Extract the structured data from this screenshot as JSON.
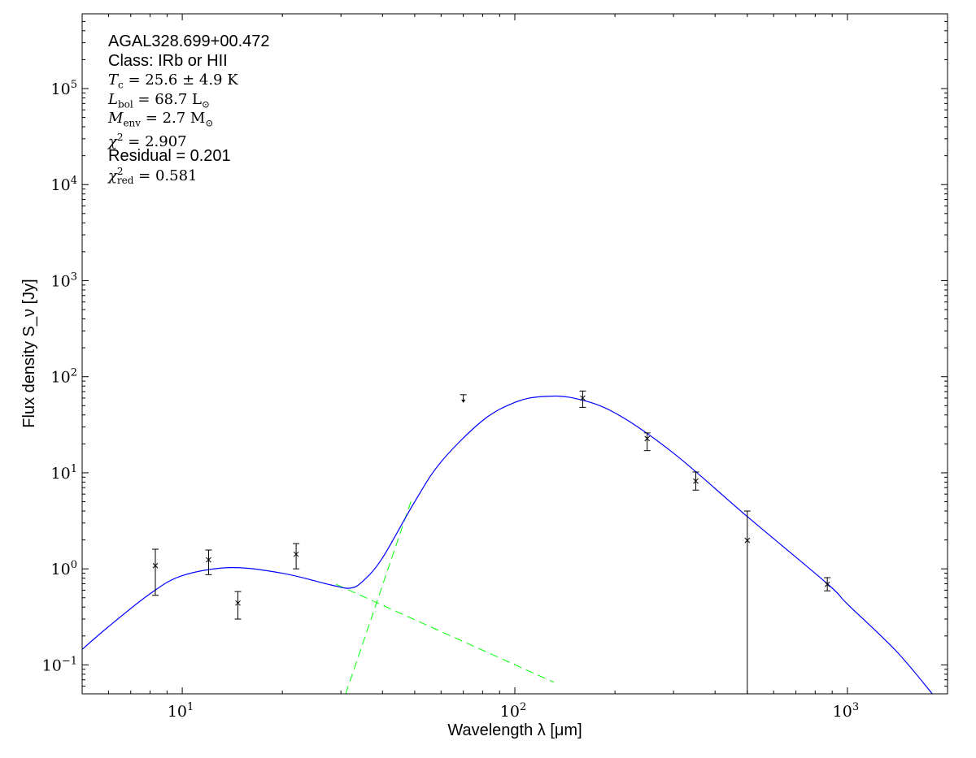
{
  "chart_data": {
    "type": "scatter",
    "xlabel": "Wavelength λ [μm]",
    "ylabel": "Flux density S_ν [Jy]",
    "xscale": "log",
    "yscale": "log",
    "xlim": [
      5,
      2000
    ],
    "ylim": [
      0.05,
      600000
    ],
    "grid": false,
    "x_ticks": [
      {
        "value": 10,
        "base": "10",
        "exp": "1"
      },
      {
        "value": 100,
        "base": "10",
        "exp": "2"
      },
      {
        "value": 1000,
        "base": "10",
        "exp": "3"
      }
    ],
    "y_ticks": [
      {
        "value": 0.1,
        "base": "10",
        "exp": "−1"
      },
      {
        "value": 1,
        "base": "10",
        "exp": "0"
      },
      {
        "value": 10,
        "base": "10",
        "exp": "1"
      },
      {
        "value": 100,
        "base": "10",
        "exp": "2"
      },
      {
        "value": 1000,
        "base": "10",
        "exp": "3"
      },
      {
        "value": 10000,
        "base": "10",
        "exp": "4"
      },
      {
        "value": 100000,
        "base": "10",
        "exp": "5"
      }
    ],
    "points": [
      {
        "x": 8.3,
        "y": 1.08,
        "err_hi": 1.6,
        "err_lo": 0.53
      },
      {
        "x": 12,
        "y": 1.24,
        "err_hi": 1.57,
        "err_lo": 0.87
      },
      {
        "x": 14.7,
        "y": 0.44,
        "err_hi": 0.58,
        "err_lo": 0.3
      },
      {
        "x": 22,
        "y": 1.42,
        "err_hi": 1.83,
        "err_lo": 1.0
      },
      {
        "x": 160,
        "y": 60,
        "err_hi": 71,
        "err_lo": 48
      },
      {
        "x": 250,
        "y": 22.7,
        "err_hi": 26,
        "err_lo": 17
      },
      {
        "x": 350,
        "y": 8.2,
        "err_hi": 10.2,
        "err_lo": 6.6
      },
      {
        "x": 500,
        "y": 1.98,
        "err_hi": 4.0,
        "err_lo": 0.05
      },
      {
        "x": 870,
        "y": 0.69,
        "err_hi": 0.81,
        "err_lo": 0.59
      }
    ],
    "upper_limits": [
      {
        "x": 70,
        "y": 65
      }
    ],
    "model_total": {
      "color": "#0000ff",
      "x": [
        5,
        6,
        8,
        10,
        14,
        20,
        28,
        32,
        35,
        40,
        50,
        60,
        80,
        100,
        120,
        150,
        200,
        300,
        500,
        870,
        1000,
        1400,
        1800
      ],
      "y": [
        0.145,
        0.25,
        0.55,
        0.85,
        1.03,
        0.9,
        0.68,
        0.63,
        0.75,
        1.3,
        5,
        13,
        35,
        54,
        62,
        60,
        42,
        16,
        3.5,
        0.7,
        0.43,
        0.14,
        0.05
      ]
    },
    "model_components": [
      {
        "color": "#00ff00",
        "style": "dashed",
        "x": [
          29,
          131
        ],
        "y": [
          0.69,
          0.066
        ]
      },
      {
        "color": "#00ff00",
        "style": "dashed",
        "x": [
          31,
          49
        ],
        "y": [
          0.05,
          5.35
        ]
      }
    ]
  },
  "annotation": {
    "source": "AGAL328.699+00.472",
    "class": "Class: IRb or HII",
    "tc": {
      "sym": "T",
      "sub": "c",
      "rest": " = 25.6 ± 4.9 K"
    },
    "lbol": {
      "sym": "L",
      "sub": "bol",
      "rest": " = 68.7 L",
      "sun": "⊙"
    },
    "menv": {
      "sym": "M",
      "sub": "env",
      "rest": " = 2.7 M",
      "sun": "⊙"
    },
    "chi2": {
      "sym": "χ",
      "sup": "2",
      "rest": " = 2.907"
    },
    "residual": "Residual = 0.201",
    "chi2red": {
      "sym": "χ",
      "sup": "2",
      "sub": "red",
      "rest": " = 0.581"
    }
  }
}
